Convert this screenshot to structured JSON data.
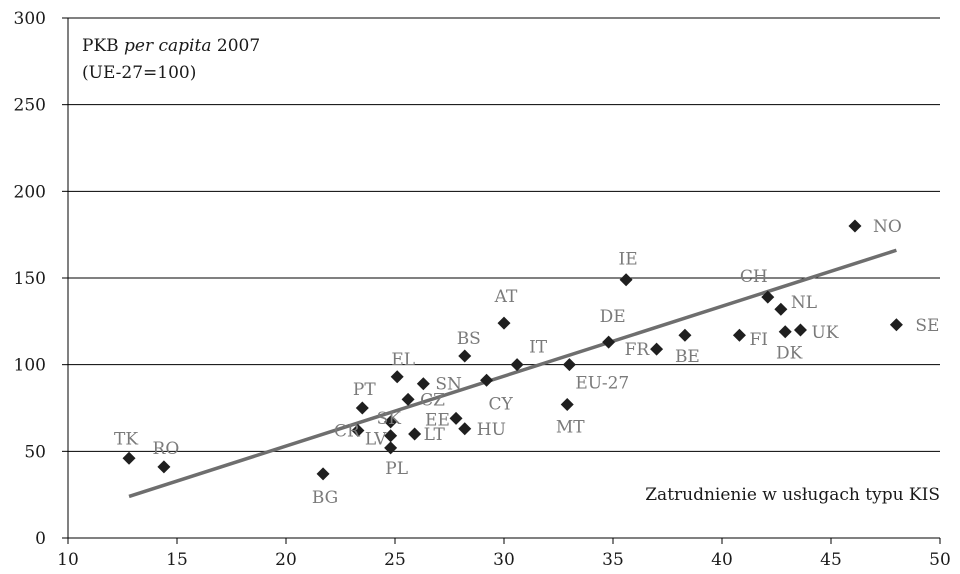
{
  "chart_data": {
    "type": "scatter",
    "title": "PKB per capita 2007",
    "title_italic": "per capita",
    "subtitle": "(UE-27=100)",
    "xlabel": "Zatrudnienie w usługach typu KIS",
    "ylabel": "",
    "xlim": [
      10,
      50
    ],
    "ylim": [
      0,
      300
    ],
    "xticks": [
      10,
      15,
      20,
      25,
      30,
      35,
      40,
      45,
      50
    ],
    "yticks": [
      0,
      50,
      100,
      150,
      200,
      250,
      300
    ],
    "grid": "horizontal",
    "trendline": {
      "x": [
        12.8,
        48.0
      ],
      "y": [
        24,
        166
      ],
      "color": "#6e6e6e"
    },
    "colors": {
      "marker": "#1f1f1f",
      "label": "#7a7a7a",
      "trend": "#6e6e6e"
    },
    "points": [
      {
        "label": "TK",
        "x": 12.8,
        "y": 46
      },
      {
        "label": "RO",
        "x": 14.4,
        "y": 41
      },
      {
        "label": "BG",
        "x": 21.7,
        "y": 37
      },
      {
        "label": "CR",
        "x": 23.3,
        "y": 62
      },
      {
        "label": "PT",
        "x": 23.5,
        "y": 75
      },
      {
        "label": "LV",
        "x": 24.8,
        "y": 59
      },
      {
        "label": "PL",
        "x": 24.8,
        "y": 52
      },
      {
        "label": "SK",
        "x": 24.8,
        "y": 67
      },
      {
        "label": "EL",
        "x": 25.1,
        "y": 93
      },
      {
        "label": "CZ",
        "x": 25.6,
        "y": 80
      },
      {
        "label": "LT",
        "x": 25.9,
        "y": 60
      },
      {
        "label": "SN",
        "x": 26.3,
        "y": 89
      },
      {
        "label": "EE",
        "x": 27.8,
        "y": 69
      },
      {
        "label": "HU",
        "x": 28.2,
        "y": 63
      },
      {
        "label": "BS",
        "x": 28.2,
        "y": 105
      },
      {
        "label": "CY",
        "x": 29.2,
        "y": 91
      },
      {
        "label": "AT",
        "x": 30.0,
        "y": 124
      },
      {
        "label": "IT",
        "x": 30.6,
        "y": 100
      },
      {
        "label": "MT",
        "x": 32.9,
        "y": 77
      },
      {
        "label": "EU-27",
        "x": 33.0,
        "y": 100
      },
      {
        "label": "DE",
        "x": 34.8,
        "y": 113
      },
      {
        "label": "IE",
        "x": 35.6,
        "y": 149
      },
      {
        "label": "FR",
        "x": 37.0,
        "y": 109
      },
      {
        "label": "BE",
        "x": 38.3,
        "y": 117
      },
      {
        "label": "FI",
        "x": 40.8,
        "y": 117
      },
      {
        "label": "CH",
        "x": 42.1,
        "y": 139
      },
      {
        "label": "NL",
        "x": 42.7,
        "y": 132
      },
      {
        "label": "DK",
        "x": 42.9,
        "y": 119
      },
      {
        "label": "UK",
        "x": 43.6,
        "y": 120
      },
      {
        "label": "NO",
        "x": 46.1,
        "y": 180
      },
      {
        "label": "SE",
        "x": 48.0,
        "y": 123
      }
    ]
  }
}
